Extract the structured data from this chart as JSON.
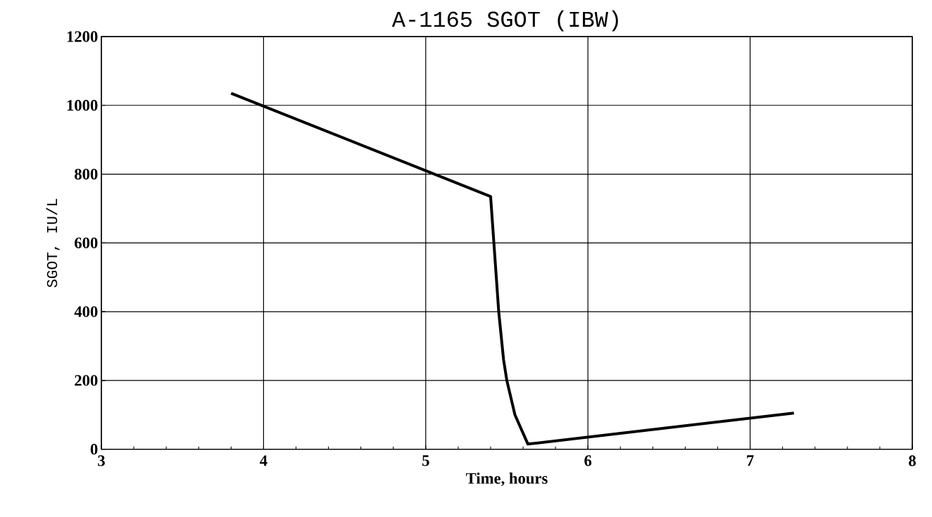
{
  "chart_data": {
    "type": "line",
    "title": "A-1165 SGOT (IBW)",
    "xlabel": "Time, hours",
    "ylabel": "SGOT, IU/L",
    "x": [
      3.8,
      5.4,
      5.45,
      5.48,
      5.5,
      5.55,
      5.63,
      7.27
    ],
    "series": [
      {
        "color": "#000000",
        "values": [
          1035,
          735,
          400,
          260,
          200,
          100,
          15,
          105
        ]
      }
    ],
    "xlim": [
      3,
      8
    ],
    "ylim": [
      0,
      1200
    ],
    "xticks": [
      3,
      4,
      5,
      6,
      7,
      8
    ],
    "yticks": [
      0,
      200,
      400,
      600,
      800,
      1000,
      1200
    ],
    "grid": true,
    "marker": "none",
    "line_style": "solid"
  }
}
